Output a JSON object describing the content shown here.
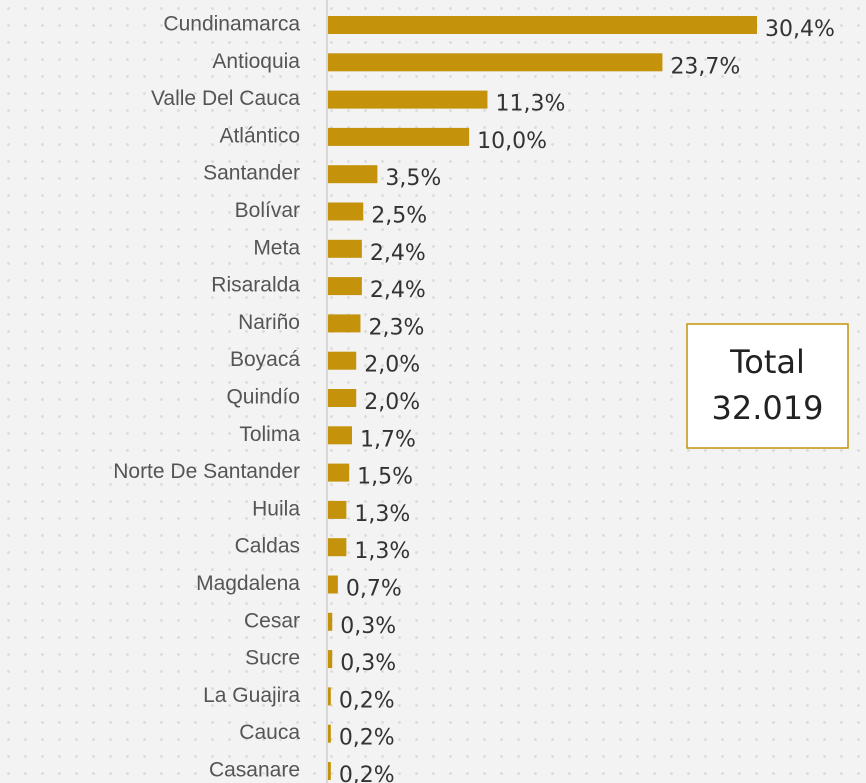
{
  "chart_data": {
    "type": "bar",
    "orientation": "horizontal",
    "color": "#c4930b",
    "categories": [
      "Cundinamarca",
      "Antioquia",
      "Valle Del Cauca",
      "Atlántico",
      "Santander",
      "Bolívar",
      "Meta",
      "Risaralda",
      "Nariño",
      "Boyacá",
      "Quindío",
      "Tolima",
      "Norte De Santander",
      "Huila",
      "Caldas",
      "Magdalena",
      "Cesar",
      "Sucre",
      "La Guajira",
      "Cauca",
      "Casanare"
    ],
    "values": [
      30.4,
      23.7,
      11.3,
      10.0,
      3.5,
      2.5,
      2.4,
      2.4,
      2.3,
      2.0,
      2.0,
      1.7,
      1.5,
      1.3,
      1.3,
      0.7,
      0.3,
      0.3,
      0.2,
      0.2,
      0.2
    ],
    "value_labels": [
      "30,4%",
      "23,7%",
      "11,3%",
      "10,0%",
      "3,5%",
      "2,5%",
      "2,4%",
      "2,4%",
      "2,3%",
      "2,0%",
      "2,0%",
      "1,7%",
      "1,5%",
      "1,3%",
      "1,3%",
      "0,7%",
      "0,3%",
      "0,3%",
      "0,2%",
      "0,2%",
      "0,2%"
    ],
    "annotations": [
      "Total",
      "32.019"
    ]
  }
}
